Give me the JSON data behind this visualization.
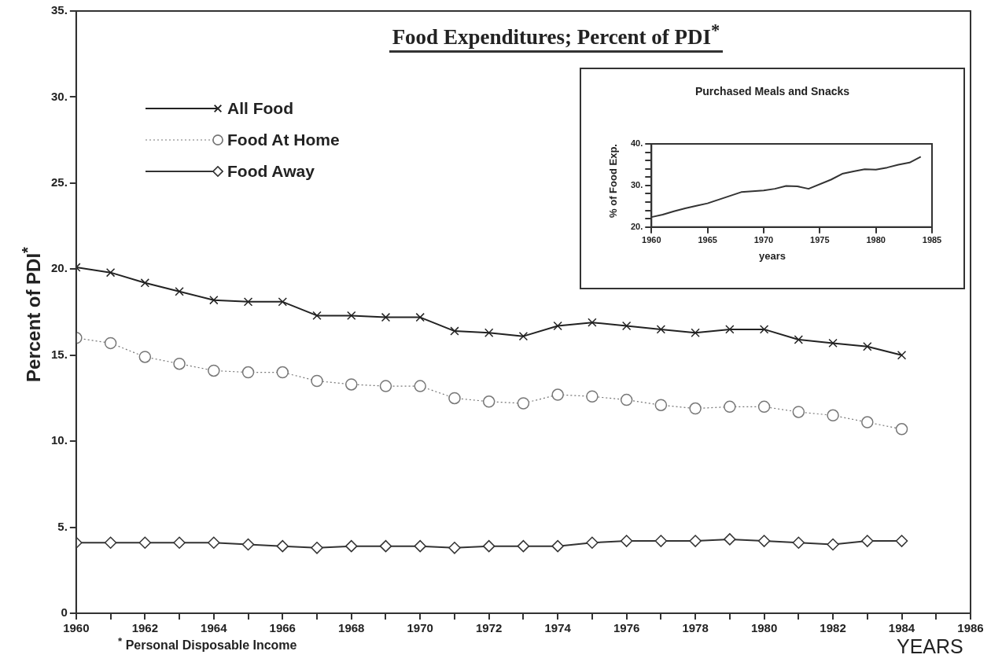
{
  "chart_data": [
    {
      "type": "line",
      "title": "Food Expenditures; Percent of PDI$^{*}$",
      "ylabel": "Percent of PDI$^{*}$",
      "xlabel": "YEARS",
      "annotations": [
        "$^{*}$ Personal Disposable Income"
      ],
      "x": [
        1960,
        1961,
        1962,
        1963,
        1964,
        1965,
        1966,
        1967,
        1968,
        1969,
        1970,
        1971,
        1972,
        1973,
        1974,
        1975,
        1976,
        1977,
        1978,
        1979,
        1980,
        1981,
        1982,
        1983,
        1984
      ],
      "series": [
        {
          "name": "All Food",
          "color": "#222222",
          "marker": "cross",
          "line_style": "solid",
          "values": [
            20.1,
            19.8,
            19.2,
            18.7,
            18.2,
            18.1,
            18.1,
            17.3,
            17.3,
            17.2,
            17.2,
            16.4,
            16.3,
            16.1,
            16.7,
            16.9,
            16.7,
            16.5,
            16.3,
            16.5,
            16.5,
            15.9,
            15.7,
            15.5,
            15.0
          ]
        },
        {
          "name": "Food At Home",
          "color": "#777777",
          "marker": "circle",
          "line_style": "dotted",
          "values": [
            16.0,
            15.7,
            14.9,
            14.5,
            14.1,
            14.0,
            14.0,
            13.5,
            13.3,
            13.2,
            13.2,
            12.5,
            12.3,
            12.2,
            12.7,
            12.6,
            12.4,
            12.1,
            11.9,
            12.0,
            12.0,
            11.7,
            11.5,
            11.1,
            10.7
          ]
        },
        {
          "name": "Food Away",
          "color": "#333333",
          "marker": "diamond",
          "line_style": "solid",
          "values": [
            4.1,
            4.1,
            4.1,
            4.1,
            4.1,
            4.0,
            3.9,
            3.8,
            3.9,
            3.9,
            3.9,
            3.8,
            3.9,
            3.9,
            3.9,
            4.1,
            4.2,
            4.2,
            4.2,
            4.3,
            4.2,
            4.1,
            4.0,
            4.2,
            4.2
          ]
        }
      ],
      "xlim": [
        1960,
        1986
      ],
      "xticks": [
        1960,
        {
          "value": 1961,
          "label": null
        },
        1962,
        {
          "value": 1963,
          "label": null
        },
        1964,
        {
          "value": 1965,
          "label": null
        },
        1966,
        {
          "value": 1967,
          "label": null
        },
        1968,
        {
          "value": 1969,
          "label": null
        },
        1970,
        {
          "value": 1971,
          "label": null
        },
        1972,
        {
          "value": 1973,
          "label": null
        },
        1974,
        {
          "value": 1975,
          "label": null
        },
        1976,
        {
          "value": 1977,
          "label": null
        },
        1978,
        {
          "value": 1979,
          "label": null
        },
        1980,
        {
          "value": 1981,
          "label": null
        },
        1982,
        {
          "value": 1983,
          "label": null
        },
        1984,
        {
          "value": 1985,
          "label": null
        },
        1986
      ],
      "ylim": [
        0,
        35
      ],
      "yticks": [
        0,
        {
          "value": 5,
          "label": "5."
        },
        {
          "value": 10,
          "label": "10."
        },
        {
          "value": 15,
          "label": "15."
        },
        {
          "value": 20,
          "label": "20."
        },
        {
          "value": 25,
          "label": "25."
        },
        {
          "value": 30,
          "label": "30."
        },
        {
          "value": 35,
          "label": "35."
        }
      ],
      "legend": "top left"
    },
    {
      "type": "line",
      "title": "Purchased Meals and Snacks",
      "ylabel": "% of Food Exp.",
      "xlabel": "years",
      "x": [
        1960,
        1961,
        1962,
        1963,
        1964,
        1965,
        1966,
        1967,
        1968,
        1969,
        1970,
        1971,
        1972,
        1973,
        1974,
        1976,
        1977,
        1978,
        1979,
        1980,
        1981,
        1982,
        1983,
        1984
      ],
      "series": [
        {
          "color": "#333333",
          "marker": "none",
          "line_style": "solid",
          "values": [
            22.4,
            23.0,
            23.8,
            24.5,
            25.1,
            25.7,
            26.6,
            27.5,
            28.4,
            28.6,
            28.8,
            29.2,
            29.9,
            29.8,
            29.2,
            31.4,
            32.8,
            33.4,
            33.9,
            33.8,
            34.3,
            35.0,
            35.5,
            36.9
          ]
        }
      ],
      "xlim": [
        1960,
        1985
      ],
      "xticks": [
        1960,
        1965,
        1970,
        1975,
        1980,
        1985
      ],
      "ylim": [
        20,
        40
      ],
      "yticks": [
        {
          "value": 20,
          "label": "20."
        },
        {
          "value": 22,
          "label": null
        },
        {
          "value": 24,
          "label": null
        },
        {
          "value": 26,
          "label": null
        },
        {
          "value": 28,
          "label": null
        },
        {
          "value": 30,
          "label": "30."
        },
        {
          "value": 32,
          "label": null
        },
        {
          "value": 34,
          "label": null
        },
        {
          "value": 36,
          "label": null
        },
        {
          "value": 38,
          "label": null
        },
        {
          "value": 40,
          "label": "40."
        }
      ]
    }
  ]
}
